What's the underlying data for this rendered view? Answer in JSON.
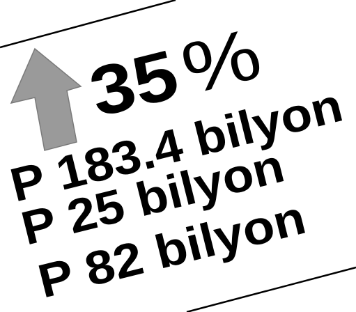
{
  "increase": {
    "figure": "35",
    "symbol": "%"
  },
  "amounts": [
    "P 183.4 bilyon",
    "P 25 bilyon",
    "P 82 bilyon"
  ]
}
